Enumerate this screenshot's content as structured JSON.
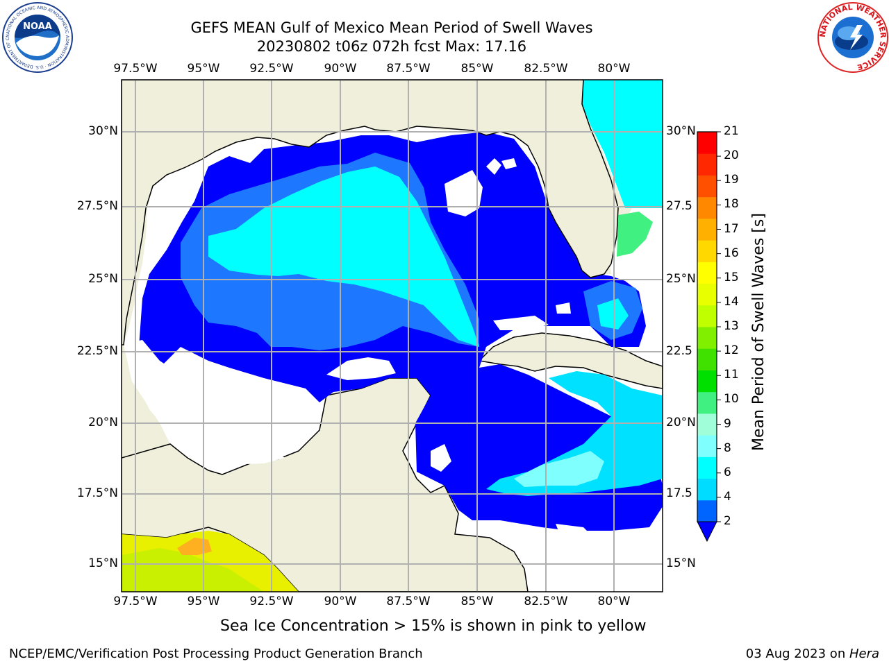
{
  "header": {
    "title_line1": "GEFS MEAN Gulf of Mexico Mean Period of Swell Waves",
    "title_line2": "20230802 t06z 072h fcst   Max: 17.16"
  },
  "logos": {
    "left": {
      "name": "NOAA",
      "ring_text": "NATIONAL OCEANIC AND ATMOSPHERIC ADMINISTRATION · U.S. DEPARTMENT OF COMMERCE",
      "center_text": "NOAA"
    },
    "right": {
      "name": "National Weather Service",
      "ring_text": "NATIONAL WEATHER SERVICE"
    }
  },
  "map": {
    "lon_ticks": [
      "97.5°W",
      "95°W",
      "92.5°W",
      "90°W",
      "87.5°W",
      "85°W",
      "82.5°W",
      "80°W"
    ],
    "lat_ticks_left": [
      "30°N",
      "27.5°N",
      "25°N",
      "22.5°N",
      "20°N",
      "17.5°N",
      "15°N"
    ],
    "lat_ticks_right": [
      "30°N",
      "27.5",
      "25°N",
      "22.5",
      "20°N",
      "17.5",
      "15°N"
    ],
    "land_color": "#efefdc",
    "ocean_nodata_color": "#ffffff",
    "grid_color": "#b0b0b0"
  },
  "colorbar": {
    "label": "Mean Period of Swell Waves [s]",
    "ticks": [
      "21",
      "20",
      "19",
      "18",
      "17",
      "16",
      "15",
      "14",
      "13",
      "12",
      "11",
      "10",
      "9",
      "8",
      "6",
      "4",
      "2"
    ],
    "colors": [
      "#0064ff",
      "#00dcff",
      "#00ffff",
      "#80ffff",
      "#a0ffd8",
      "#40f080",
      "#00e000",
      "#40e000",
      "#80f000",
      "#c0ff00",
      "#e8ff00",
      "#ffff00",
      "#ffd800",
      "#ffb000",
      "#ff8800",
      "#ff5000",
      "#ff2800",
      "#ff0000"
    ],
    "extend_color": "#0000ff"
  },
  "annotation": "Sea Ice Concentration > 15% is shown in pink to yellow",
  "footer": {
    "left": "NCEP/EMC/Verification Post Processing Product Generation Branch",
    "date": "03 Aug 2023 on ",
    "host": "Hera"
  }
}
